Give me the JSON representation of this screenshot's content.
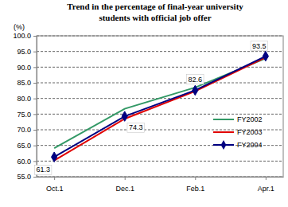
{
  "chart_data": {
    "type": "line",
    "title": "Trend in the percentage of final-year university students with official job offer",
    "ylabel": "(%)",
    "categories": [
      "Oct.1",
      "Dec.1",
      "Feb.1",
      "Apr.1"
    ],
    "series": [
      {
        "name": "FY2002",
        "color": "#339966",
        "values": [
          64.1,
          76.7,
          83.5,
          92.8
        ]
      },
      {
        "name": "FY2003",
        "color": "#e00000",
        "values": [
          60.2,
          73.5,
          82.3,
          93.1
        ]
      },
      {
        "name": "FY2004",
        "color": "#000080",
        "marker": "diamond",
        "data_labels": true,
        "values": [
          61.3,
          74.3,
          82.6,
          93.5
        ]
      }
    ],
    "ylim": [
      55,
      100
    ],
    "yticks": [
      {
        "value": 55,
        "label": "55.0"
      },
      {
        "value": 60,
        "label": "60.0"
      },
      {
        "value": 65,
        "label": "65.0"
      },
      {
        "value": 70,
        "label": "70.0"
      },
      {
        "value": 75,
        "label": "75.0"
      },
      {
        "value": 80,
        "label": "80.0"
      },
      {
        "value": 85,
        "label": "85.0"
      },
      {
        "value": 90,
        "label": "90.0"
      },
      {
        "value": 95,
        "label": "95.0"
      },
      {
        "value": 100,
        "label": "100.0"
      }
    ],
    "grid": true,
    "legend": "lower right"
  }
}
